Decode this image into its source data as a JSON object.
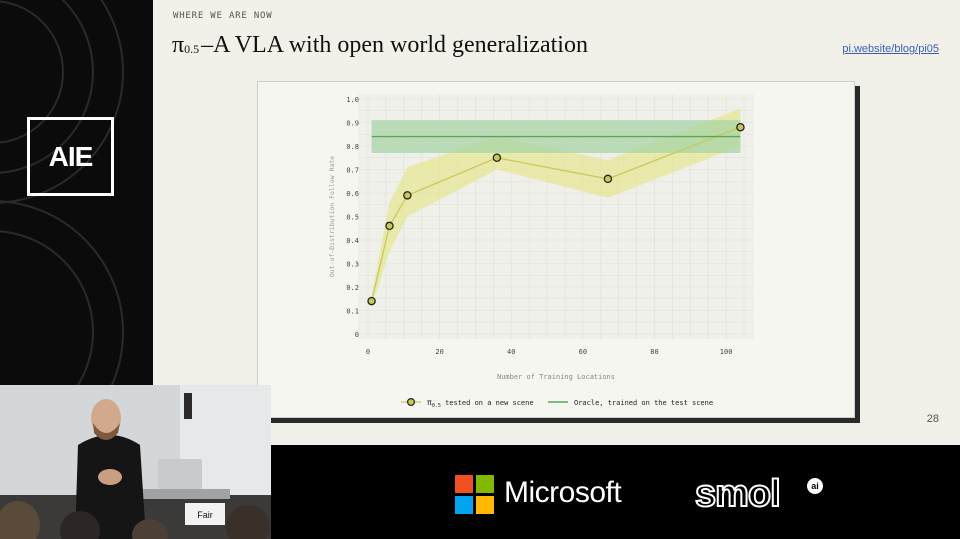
{
  "event": {
    "logo_text": "AIE"
  },
  "slide": {
    "eyebrow": "WHERE WE ARE NOW",
    "title_symbol": "π",
    "title_subscript": "0.5",
    "title_rest": "–A VLA with open world generalization",
    "link": "pi.website/blog/pi05",
    "page_number": "28"
  },
  "chart_data": {
    "type": "line",
    "xlabel": "Number of Training Locations",
    "ylabel": "Out-of-Distribution Follow Rate",
    "xlim": [
      0,
      105
    ],
    "ylim": [
      0,
      1.0
    ],
    "x_ticks": [
      0,
      20,
      40,
      60,
      80,
      100
    ],
    "y_ticks": [
      "0",
      "0.1",
      "0.2",
      "0.3",
      "0.4",
      "0.5",
      "0.6",
      "0.7",
      "0.8",
      "0.9",
      "1.0"
    ],
    "grid": true,
    "legend_position": "bottom",
    "series": [
      {
        "name_prefix": "π",
        "name_subscript": "0.5",
        "name_suffix": " tested on a new scene",
        "color": "#c9c95a",
        "band_color": "#e4e58e",
        "x": [
          1,
          6,
          11,
          36,
          67,
          104
        ],
        "y": [
          0.14,
          0.46,
          0.59,
          0.75,
          0.66,
          0.88
        ],
        "lower": [
          0.12,
          0.35,
          0.5,
          0.7,
          0.58,
          0.8
        ],
        "upper": [
          0.16,
          0.56,
          0.71,
          0.84,
          0.74,
          0.96
        ]
      },
      {
        "name": "Oracle, trained on the test scene",
        "color": "#5aa55a",
        "band_color": "#a8d4a6",
        "x": [
          1,
          104
        ],
        "y": [
          0.84,
          0.84
        ],
        "lower": [
          0.77,
          0.77
        ],
        "upper": [
          0.91,
          0.91
        ]
      }
    ]
  },
  "sponsors": {
    "microsoft_name": "Microsoft",
    "microsoft_colors": [
      "#f25022",
      "#7fba00",
      "#00a4ef",
      "#ffb900"
    ],
    "smol_name": "smol",
    "smol_badge": "ai"
  },
  "webcam": {
    "laptop_sticker": "Fair"
  }
}
